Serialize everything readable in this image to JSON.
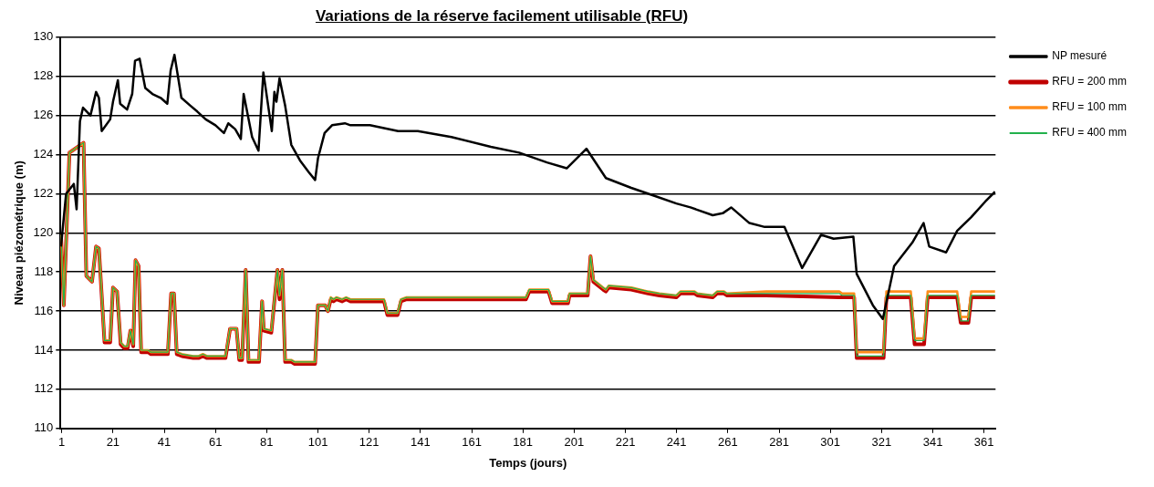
{
  "chart_data": {
    "type": "line",
    "title": "Variations de la réserve facilement utilisable (RFU)",
    "xlabel": "Temps (jours)",
    "ylabel": "Niveau piézométrique (m)",
    "xlim": [
      0.5,
      365.5
    ],
    "xticks": [
      1,
      21,
      41,
      61,
      81,
      101,
      121,
      141,
      161,
      181,
      201,
      221,
      241,
      261,
      281,
      301,
      321,
      341,
      361
    ],
    "ylim": [
      110,
      130
    ],
    "yticks": [
      110,
      112,
      114,
      116,
      118,
      120,
      122,
      124,
      126,
      128,
      130
    ],
    "grid": "y",
    "legend": "top right",
    "series": [
      {
        "name": "NP mesuré",
        "color": "#000000",
        "x": [
          0.7,
          2.7,
          5.7,
          6.8,
          8.1,
          9.3,
          12.2,
          14.4,
          15.5,
          16.6,
          19.9,
          21,
          22.9,
          23.8,
          26.5,
          28.5,
          29.6,
          31.4,
          33.6,
          36.4,
          39.6,
          42.2,
          43.5,
          45,
          47.7,
          51.2,
          53.9,
          57.2,
          61,
          64.3,
          66,
          68.7,
          70.9,
          72,
          75.3,
          77.8,
          79.7,
          83,
          84,
          84.8,
          86,
          88.2,
          90.6,
          94,
          97.4,
          99.9,
          101,
          103.6,
          106.5,
          111.5,
          113.7,
          121.3,
          132.3,
          140,
          153.1,
          168.5,
          179.5,
          190.4,
          198.1,
          205.8,
          213.4,
          223.3,
          232.1,
          240.9,
          246.4,
          255.1,
          259,
          262.3,
          269.4,
          275.4,
          283.1,
          290,
          297.4,
          302.3,
          310,
          311.3,
          317.6,
          321.5,
          325.9,
          333,
          337.4,
          339.6,
          346.2,
          350.5,
          356,
          361.5,
          365.3
        ],
        "values": [
          119.3,
          122.0,
          122.5,
          121.2,
          125.7,
          126.4,
          126.0,
          127.2,
          126.9,
          125.2,
          125.8,
          126.7,
          127.8,
          126.6,
          126.3,
          127.1,
          128.8,
          128.9,
          127.4,
          127.1,
          126.9,
          126.6,
          128.3,
          129.1,
          126.9,
          126.5,
          126.2,
          125.8,
          125.5,
          125.1,
          125.6,
          125.3,
          124.8,
          127.1,
          124.9,
          124.2,
          128.2,
          125.2,
          127.2,
          126.7,
          127.9,
          126.5,
          124.5,
          123.7,
          123.1,
          122.7,
          123.8,
          125.1,
          125.5,
          125.6,
          125.5,
          125.5,
          125.2,
          125.2,
          124.9,
          124.4,
          124.1,
          123.6,
          123.3,
          124.3,
          122.8,
          122.3,
          121.9,
          121.5,
          121.3,
          120.9,
          121.0,
          121.3,
          120.5,
          120.3,
          120.3,
          118.2,
          119.9,
          119.7,
          119.8,
          117.9,
          116.3,
          115.6,
          118.3,
          119.5,
          120.5,
          119.3,
          119.0,
          120.1,
          120.8,
          121.6,
          122.1
        ]
      },
      {
        "name": "RFU = 200 mm",
        "color": "#c00000",
        "x": [
          0.7,
          1.8,
          4,
          9.5,
          10.6,
          12.8,
          14.4,
          15.5,
          17.7,
          19.9,
          21,
          22.6,
          24,
          25.4,
          26.7,
          27.8,
          28.9,
          29.8,
          31,
          32,
          34.7,
          35.8,
          42.4,
          43.7,
          44.8,
          45.9,
          47.9,
          52.3,
          54.4,
          56.1,
          57.7,
          64.9,
          66.7,
          69.2,
          70.3,
          71.4,
          72.8,
          73.9,
          78,
          79.2,
          79.9,
          82.8,
          85.2,
          86,
          87.1,
          88.2,
          90.6,
          91.9,
          99.9,
          101,
          103.8,
          104.9,
          106,
          107.1,
          108.2,
          110.4,
          112,
          113.7,
          126.8,
          128.1,
          132.1,
          133.4,
          135.6,
          182.2,
          183.5,
          191,
          192.4,
          198.6,
          199.2,
          206.3,
          207.4,
          208.5,
          212.3,
          213.4,
          214.5,
          223.3,
          229.9,
          234.3,
          240.9,
          242.5,
          248,
          249.1,
          255.1,
          256.8,
          259.5,
          260.6,
          276,
          304.5,
          305.6,
          310.3,
          311.3,
          321.8,
          322.9,
          332.4,
          333.9,
          337.6,
          339,
          350.5,
          351.9,
          354.9,
          356,
          365.3
        ],
        "values": [
          119.9,
          116.3,
          124.1,
          124.6,
          117.8,
          117.5,
          119.3,
          119.2,
          114.4,
          114.4,
          117.2,
          117.0,
          114.3,
          114.1,
          114.1,
          115.0,
          114.2,
          118.6,
          118.3,
          113.9,
          113.9,
          113.8,
          113.8,
          116.9,
          116.9,
          113.8,
          113.7,
          113.6,
          113.6,
          113.7,
          113.6,
          113.6,
          115.1,
          115.1,
          113.5,
          113.5,
          118.1,
          113.4,
          113.4,
          116.5,
          115.0,
          114.9,
          118.1,
          116.6,
          118.1,
          113.4,
          113.4,
          113.3,
          113.3,
          116.3,
          116.3,
          116.0,
          116.6,
          116.5,
          116.6,
          116.5,
          116.6,
          116.5,
          116.5,
          115.8,
          115.8,
          116.5,
          116.6,
          116.6,
          117.0,
          117.0,
          116.4,
          116.4,
          116.8,
          116.8,
          118.8,
          117.5,
          117.1,
          117.0,
          117.2,
          117.1,
          116.9,
          116.8,
          116.7,
          116.9,
          116.9,
          116.8,
          116.7,
          116.9,
          116.9,
          116.8,
          116.8,
          116.7,
          116.7,
          116.7,
          113.6,
          113.6,
          116.7,
          116.7,
          114.3,
          114.3,
          116.7,
          116.7,
          115.4,
          115.4,
          116.7,
          116.7
        ]
      },
      {
        "name": "RFU = 100 mm",
        "color": "#ff8c1a",
        "x": [
          0.7,
          1.8,
          4,
          9.5,
          10.6,
          12.8,
          14.4,
          15.5,
          17.7,
          19.9,
          21,
          22.6,
          24,
          25.4,
          26.7,
          27.8,
          28.9,
          29.8,
          31,
          32,
          34.7,
          35.8,
          42.4,
          43.7,
          44.8,
          45.9,
          47.9,
          52.3,
          54.4,
          56.1,
          57.7,
          64.9,
          66.7,
          69.2,
          70.3,
          71.4,
          72.8,
          73.9,
          78,
          79.2,
          79.9,
          82.8,
          85.2,
          86,
          87.1,
          88.2,
          90.6,
          91.9,
          99.9,
          101,
          103.8,
          104.9,
          106,
          107.1,
          108.2,
          110.4,
          112,
          113.7,
          126.8,
          128.1,
          132.1,
          133.4,
          135.6,
          182.2,
          183.5,
          191,
          192.4,
          198.6,
          199.2,
          206.3,
          207.4,
          208.5,
          212.3,
          213.4,
          214.5,
          223.3,
          229.9,
          234.3,
          240.9,
          242.5,
          248,
          249.1,
          255.1,
          256.8,
          259.5,
          260.6,
          276,
          304.5,
          305.6,
          310.3,
          311.3,
          321.8,
          322.9,
          332.4,
          333.9,
          337.6,
          339,
          350.5,
          351.9,
          354.9,
          356,
          365.3
        ],
        "values": [
          119.9,
          116.3,
          124.1,
          124.6,
          117.8,
          117.5,
          119.3,
          119.2,
          114.5,
          114.5,
          117.2,
          117.0,
          114.4,
          114.2,
          114.2,
          115.0,
          114.3,
          118.6,
          118.3,
          114.0,
          114.0,
          113.9,
          113.9,
          116.9,
          116.9,
          113.9,
          113.8,
          113.7,
          113.7,
          113.8,
          113.7,
          113.7,
          115.1,
          115.1,
          113.6,
          113.6,
          118.1,
          113.5,
          113.5,
          116.5,
          115.1,
          115.0,
          118.1,
          116.8,
          118.1,
          113.5,
          113.5,
          113.4,
          113.4,
          116.3,
          116.3,
          116.0,
          116.7,
          116.6,
          116.7,
          116.6,
          116.7,
          116.6,
          116.6,
          115.9,
          115.9,
          116.6,
          116.7,
          116.7,
          117.1,
          117.1,
          116.5,
          116.5,
          116.9,
          116.9,
          118.8,
          117.6,
          117.2,
          117.1,
          117.3,
          117.2,
          117.0,
          116.9,
          116.8,
          117.0,
          117.0,
          116.9,
          116.8,
          117.0,
          117.0,
          116.9,
          117.0,
          117.0,
          116.9,
          116.9,
          113.9,
          113.9,
          117.0,
          117.0,
          114.6,
          114.6,
          117.0,
          117.0,
          115.7,
          115.7,
          117.0,
          117.0
        ]
      },
      {
        "name": "RFU = 400 mm",
        "color": "#22b14c",
        "x": [
          0.7,
          1.8,
          4,
          9.5,
          10.6,
          12.8,
          14.4,
          15.5,
          17.7,
          19.9,
          21,
          22.6,
          24,
          25.4,
          26.7,
          27.8,
          28.9,
          29.8,
          31,
          32,
          34.7,
          35.8,
          42.4,
          43.7,
          44.8,
          45.9,
          47.9,
          52.3,
          54.4,
          56.1,
          57.7,
          64.9,
          66.7,
          69.2,
          70.3,
          71.4,
          72.8,
          73.9,
          78,
          79.2,
          79.9,
          82.8,
          85.2,
          86,
          87.1,
          88.2,
          90.6,
          91.9,
          99.9,
          101,
          103.8,
          104.9,
          106,
          107.1,
          108.2,
          110.4,
          112,
          113.7,
          126.8,
          128.1,
          132.1,
          133.4,
          135.6,
          182.2,
          183.5,
          191,
          192.4,
          198.6,
          199.2,
          206.3,
          207.4,
          208.5,
          212.3,
          213.4,
          214.5,
          223.3,
          229.9,
          234.3,
          240.9,
          242.5,
          248,
          249.1,
          255.1,
          256.8,
          259.5,
          260.6,
          276,
          304.5,
          305.6,
          310.3,
          311.3,
          321.8,
          322.9,
          332.4,
          333.9,
          337.6,
          339,
          350.5,
          351.9,
          354.9,
          356,
          365.3
        ],
        "values": [
          119.9,
          116.3,
          124.1,
          124.6,
          117.8,
          117.5,
          119.3,
          119.2,
          114.5,
          114.5,
          117.2,
          117.0,
          114.4,
          114.2,
          114.2,
          115.0,
          114.3,
          118.6,
          118.3,
          114.0,
          114.0,
          113.9,
          113.9,
          116.9,
          116.9,
          113.9,
          113.8,
          113.7,
          113.7,
          113.8,
          113.7,
          113.7,
          115.1,
          115.1,
          113.6,
          113.6,
          118.1,
          113.5,
          113.5,
          116.5,
          115.1,
          115.0,
          118.1,
          116.8,
          118.1,
          113.5,
          113.5,
          113.4,
          113.4,
          116.3,
          116.3,
          116.0,
          116.7,
          116.6,
          116.7,
          116.6,
          116.7,
          116.6,
          116.6,
          115.9,
          115.9,
          116.6,
          116.7,
          116.7,
          117.1,
          117.1,
          116.5,
          116.5,
          116.9,
          116.9,
          118.8,
          117.6,
          117.2,
          117.1,
          117.3,
          117.2,
          117.0,
          116.9,
          116.8,
          117.0,
          117.0,
          116.9,
          116.8,
          117.0,
          117.0,
          116.9,
          116.9,
          116.9,
          116.8,
          116.8,
          113.7,
          113.7,
          116.8,
          116.8,
          114.5,
          114.5,
          116.8,
          116.8,
          115.5,
          115.5,
          116.8,
          116.8
        ]
      }
    ]
  }
}
